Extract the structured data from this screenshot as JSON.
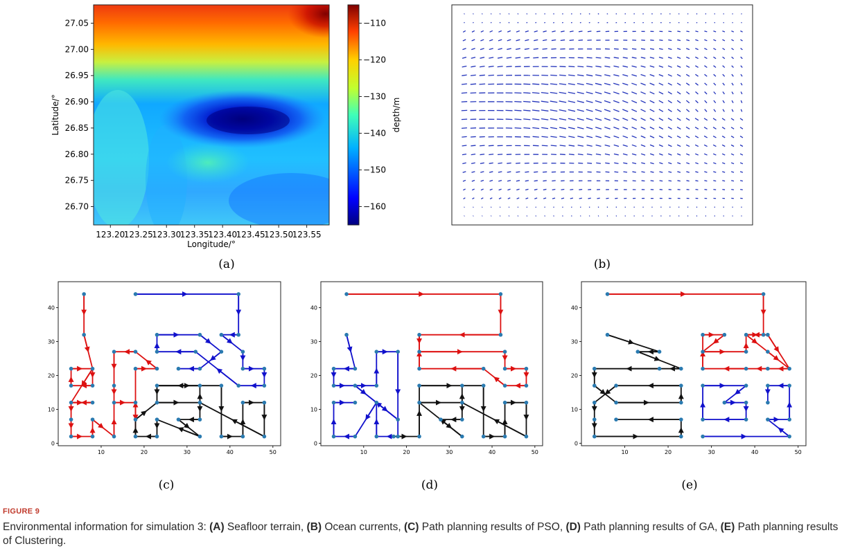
{
  "figure": {
    "title": "FIGURE 9",
    "caption": {
      "intro": "Environmental information for simulation 3: ",
      "items": [
        {
          "key": "(A)",
          "text": " Seafloor terrain, "
        },
        {
          "key": "(B)",
          "text": " Ocean currents, "
        },
        {
          "key": "(C)",
          "text": " Path planning results of PSO, "
        },
        {
          "key": "(D)",
          "text": " Path planning results of GA, "
        },
        {
          "key": "(E)",
          "text": " Path planning results of Clustering."
        }
      ]
    }
  },
  "panel_labels": {
    "a": "(a)",
    "b": "(b)",
    "c": "(c)",
    "d": "(d)",
    "e": "(e)"
  },
  "colors": {
    "red": "#dd1111",
    "blue": "#1111cc",
    "black": "#111111",
    "node": "#2a7ab0",
    "quiver": "#2233bb"
  },
  "chart_data": [
    {
      "type": "heatmap",
      "panel": "a",
      "xlabel": "Longitude/°",
      "ylabel": "Latitude/°",
      "xticks": [
        "123.20",
        "123.25",
        "123.30",
        "123.35",
        "123.40",
        "123.45",
        "123.50",
        "123.55"
      ],
      "yticks": [
        "27.05",
        "27.00",
        "26.95",
        "26.90",
        "26.85",
        "26.80",
        "26.75",
        "26.70"
      ],
      "xlim": [
        123.17,
        123.59
      ],
      "ylim": [
        26.665,
        27.085
      ],
      "colorbar": {
        "label": "depth/m",
        "ticks": [
          -110,
          -120,
          -130,
          -140,
          -150,
          -160
        ],
        "range": [
          -165,
          -105
        ],
        "colormap": "jet"
      },
      "depth_features": [
        {
          "kind": "deep_basin",
          "lon": 123.43,
          "lat": 26.86,
          "depth": -163
        },
        {
          "kind": "shallow",
          "lon": 123.57,
          "lat": 27.07,
          "depth": -105
        },
        {
          "kind": "background",
          "depth": -150
        }
      ]
    },
    {
      "type": "quiver",
      "panel": "b",
      "description_color": "#2233bb",
      "field": "ocean currents",
      "grid": [
        32,
        24
      ],
      "axes_ticks": "none"
    },
    {
      "type": "path",
      "panel": "c",
      "xlim": [
        0,
        50
      ],
      "ylim": [
        0,
        45
      ],
      "xticks": [
        10,
        20,
        30,
        40,
        50
      ],
      "yticks": [
        0,
        10,
        20,
        30,
        40
      ],
      "series": [
        {
          "color": "red",
          "points": [
            [
              6,
              44
            ],
            [
              6,
              32
            ],
            [
              8,
              22
            ],
            [
              8,
              17
            ],
            [
              3,
              17
            ],
            [
              3,
              22
            ],
            [
              8,
              22
            ],
            [
              3,
              12
            ],
            [
              8,
              12
            ],
            [
              3,
              12
            ],
            [
              3,
              7
            ],
            [
              3,
              2
            ],
            [
              8,
              2
            ],
            [
              8,
              7
            ],
            [
              13,
              2
            ],
            [
              13,
              12
            ],
            [
              18,
              12
            ],
            [
              18,
              2
            ],
            [
              18,
              22
            ],
            [
              23,
              22
            ],
            [
              18,
              27
            ],
            [
              13,
              27
            ],
            [
              13,
              17
            ],
            [
              13,
              12
            ]
          ]
        },
        {
          "color": "blue",
          "points": [
            [
              18,
              44
            ],
            [
              42,
              44
            ],
            [
              42,
              32
            ],
            [
              38,
              32
            ],
            [
              43,
              27
            ],
            [
              43,
              22
            ],
            [
              48,
              22
            ],
            [
              48,
              17
            ],
            [
              42,
              17
            ],
            [
              32,
              27
            ],
            [
              23,
              27
            ],
            [
              23,
              32
            ],
            [
              33,
              32
            ],
            [
              38,
              27
            ],
            [
              33,
              22
            ],
            [
              28,
              22
            ]
          ]
        },
        {
          "color": "black",
          "points": [
            [
              23,
              17
            ],
            [
              38,
              17
            ],
            [
              38,
              2
            ],
            [
              43,
              2
            ],
            [
              43,
              12
            ],
            [
              48,
              12
            ],
            [
              48,
              2
            ],
            [
              33,
              12
            ],
            [
              33,
              7
            ],
            [
              28,
              7
            ],
            [
              33,
              2
            ],
            [
              23,
              7
            ],
            [
              23,
              2
            ],
            [
              18,
              2
            ],
            [
              18,
              7
            ],
            [
              23,
              12
            ],
            [
              33,
              12
            ],
            [
              33,
              17
            ],
            [
              23,
              17
            ],
            [
              23,
              12
            ]
          ]
        }
      ]
    },
    {
      "type": "path",
      "panel": "d",
      "xlim": [
        0,
        50
      ],
      "ylim": [
        0,
        45
      ],
      "xticks": [
        10,
        20,
        30,
        40,
        50
      ],
      "yticks": [
        0,
        10,
        20,
        30,
        40
      ],
      "series": [
        {
          "color": "red",
          "points": [
            [
              6,
              44
            ],
            [
              42,
              44
            ],
            [
              42,
              32
            ],
            [
              23,
              32
            ],
            [
              23,
              27
            ],
            [
              43,
              27
            ],
            [
              43,
              22
            ],
            [
              48,
              22
            ],
            [
              48,
              17
            ],
            [
              43,
              17
            ],
            [
              38,
              22
            ],
            [
              23,
              22
            ],
            [
              23,
              32
            ]
          ]
        },
        {
          "color": "blue",
          "points": [
            [
              6,
              32
            ],
            [
              8,
              22
            ],
            [
              3,
              22
            ],
            [
              3,
              17
            ],
            [
              8,
              17
            ],
            [
              13,
              12
            ],
            [
              18,
              7
            ],
            [
              8,
              17
            ],
            [
              13,
              17
            ],
            [
              13,
              27
            ],
            [
              18,
              27
            ],
            [
              18,
              2
            ],
            [
              13,
              2
            ],
            [
              13,
              12
            ],
            [
              8,
              2
            ],
            [
              3,
              2
            ],
            [
              3,
              12
            ],
            [
              8,
              12
            ]
          ]
        },
        {
          "color": "black",
          "points": [
            [
              17,
              2
            ],
            [
              23,
              2
            ],
            [
              23,
              17
            ],
            [
              38,
              17
            ],
            [
              38,
              2
            ],
            [
              43,
              2
            ],
            [
              43,
              12
            ],
            [
              48,
              12
            ],
            [
              48,
              2
            ],
            [
              33,
              12
            ],
            [
              33,
              7
            ],
            [
              28,
              7
            ],
            [
              33,
              2
            ],
            [
              23,
              12
            ],
            [
              33,
              12
            ],
            [
              33,
              17
            ]
          ]
        }
      ]
    },
    {
      "type": "path",
      "panel": "e",
      "xlim": [
        0,
        50
      ],
      "ylim": [
        0,
        45
      ],
      "xticks": [
        10,
        20,
        30,
        40,
        50
      ],
      "yticks": [
        0,
        10,
        20,
        30,
        40
      ],
      "series": [
        {
          "color": "red",
          "points": [
            [
              6,
              44
            ],
            [
              42,
              44
            ],
            [
              42,
              32
            ],
            [
              38,
              32
            ],
            [
              43,
              27
            ],
            [
              48,
              22
            ],
            [
              43,
              22
            ],
            [
              38,
              22
            ],
            [
              28,
              22
            ],
            [
              28,
              32
            ],
            [
              33,
              32
            ],
            [
              28,
              27
            ],
            [
              38,
              27
            ],
            [
              38,
              32
            ],
            [
              43,
              32
            ],
            [
              48,
              22
            ]
          ]
        },
        {
          "color": "blue",
          "points": [
            [
              28,
              17
            ],
            [
              38,
              17
            ],
            [
              33,
              12
            ],
            [
              38,
              12
            ],
            [
              38,
              7
            ],
            [
              28,
              7
            ],
            [
              28,
              17
            ]
          ]
        },
        {
          "color": "blue",
          "points": [
            [
              28,
              2
            ],
            [
              48,
              2
            ],
            [
              43,
              7
            ],
            [
              48,
              7
            ],
            [
              48,
              17
            ],
            [
              43,
              17
            ],
            [
              43,
              12
            ]
          ]
        },
        {
          "color": "black",
          "points": [
            [
              6,
              32
            ],
            [
              18,
              27
            ],
            [
              13,
              27
            ],
            [
              23,
              22
            ],
            [
              18,
              22
            ],
            [
              3,
              22
            ],
            [
              3,
              17
            ],
            [
              8,
              12
            ],
            [
              23,
              12
            ],
            [
              23,
              17
            ],
            [
              8,
              17
            ],
            [
              3,
              12
            ],
            [
              3,
              7
            ],
            [
              3,
              2
            ],
            [
              23,
              2
            ],
            [
              23,
              7
            ],
            [
              8,
              7
            ]
          ]
        }
      ]
    }
  ]
}
